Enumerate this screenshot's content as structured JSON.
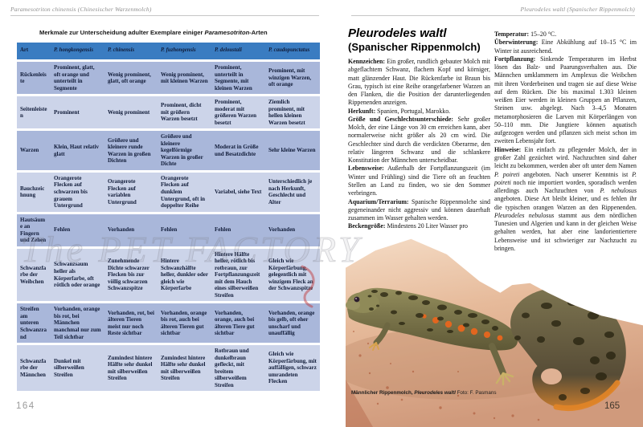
{
  "watermark": {
    "text": "The PET FACTORY",
    "accent_red": "#c03030",
    "gray": "#7d7d8a"
  },
  "colors": {
    "table_header_blue": "#3a7cc1",
    "table_row_dark": "#a9b7da",
    "table_row_light": "#ccd4e9",
    "table_text_navy": "#101b38",
    "rock_pink": "#e4b797",
    "newt_olive": "#6f6945",
    "newt_spot_orange": "#e2661f",
    "rule_gray": "#c6c6c6"
  },
  "left_page": {
    "running_head": "Paramesotriton chinensis (Chinesischer Warzenmolch)",
    "page_number": "164",
    "table": {
      "title_pre": "Merkmale zur Unterscheidung adulter Exemplare einiger ",
      "title_italic": "Paramesotriton",
      "title_post": "-Arten",
      "columns": [
        "Art",
        "P. hongkongensis",
        "P. chinensis",
        "P. fuzhongensis",
        "P. deloustali",
        "P. caudopunctatus"
      ],
      "rows": [
        {
          "label": "Rückenleiste",
          "cells": [
            "Prominent, glatt, oft orange und unterteilt in Segmente",
            "Wenig prominent, glatt, oft orange",
            "Wenig prominent, mit kleinen Warzen",
            "Prominent, unterteilt in Segmente, mit kleinen Warzen",
            "Prominent, mit winzigen Warzen, oft orange"
          ]
        },
        {
          "label": "Seitenleisten",
          "cells": [
            "Prominent",
            "Wenig prominent",
            "Prominent, dicht mit größern Warzen besetzt",
            "Prominent, moderat mit größeren Warzen besetzt",
            "Ziemlich prominent, mit hellen kleinen Warzen besetzt"
          ]
        },
        {
          "label": "Warzen",
          "cells": [
            "Klein, Haut relativ glatt",
            "Größere und kleinere runde Warzen in großen Dichten",
            "Größere und kleinere kegelförmige Warzen in großer Dichte",
            "Moderat in Größe und Besatzdichte",
            "Sehr kleine Warzen"
          ]
        },
        {
          "label": "Bauchzeichnung",
          "cells": [
            "Orangerote Flecken auf schwarzen bis grauem Untergrund",
            "Orangerote Flecken auf variablen Untergrund",
            "Orangerote Flecken auf dunklem Untergrund, oft in doppelter Reihe",
            "Variabel, siehe Text",
            "Unterschiedlich je nach Herkunft, Geschlecht und Alter"
          ]
        },
        {
          "label": "Hautsäume an Fingern und Zehen",
          "cells": [
            "Fehlen",
            "Vorhanden",
            "Fehlen",
            "Fehlen",
            "Vorhanden"
          ]
        },
        {
          "label": "Schwanzfarbe der Weibchen",
          "cells": [
            "Schwanzsaum heller als Körperfarbe, oft rötlich oder orange",
            "Zunehmende Dichte schwarzer Flecken bis zur völlig schwarzen Schwanzspitze",
            "Hintere Schwanzhälfte heller, dunkler oder gleich wie Körperfarbe",
            "Hintere Hälfte heller, rötlich bis rotbraun, zur Fortpflanzungszeit mit dem Hauch eines silberweißen Streifen",
            "Gleich wie Körperfärbung, gelegentlich mit winzigem Fleck an der Schwanzspitze"
          ]
        },
        {
          "label": "Streifen am unteren Schwanzrand",
          "cells": [
            "Vorhanden, orange bis rot, bei Männchen manchmal nur zum Teil sichtbar",
            "Vorhanden, rot, bei älteren Tieren meist nur noch Reste sichtbar",
            "Vorhanden, orange bis rot, auch bei älteren Tieren gut sichtbar",
            "Vorhanden, orange, auch bei älteren Tiere gut sichtbar",
            "Vorhanden, orange bis gelb, oft eher unscharf und unauffällig"
          ]
        },
        {
          "label": "Schwanzfarbe der Männchen",
          "cells": [
            "Dunkel mit silberweißen Streifen",
            "Zumindest hintere Hälfte sehr dunkel mit silberweißen Streifen",
            "Zumindest hintere Hälfte sehr dunkel mit silberweißen Streifen",
            "Rotbraun und dunkelbraun gefleckt, mit breitem silberweißem Streifen",
            "Gleich wie Körperfärbung, mit auffälligen, schwarz umrandeten Flecken"
          ]
        }
      ]
    }
  },
  "right_page": {
    "running_head": "Pleurodeles waltl (Spanischer Rippenmolch)",
    "page_number": "165",
    "title_line1": "Pleurodeles waltl",
    "title_line2": "(Spanischer Rippenmolch)",
    "col1": [
      {
        "label": "Kennzeichen:",
        "text": " Ein großer, rundlich gebauter Molch mit abgeflachtem Schwanz, flachem Kopf und körniger, matt glänzender Haut. Die Rückenfarbe ist Braun bis Grau, typisch ist eine Reihe orangefarbener Warzen an den Flanken, die die Position der darunterliegenden Rippenenden anzeigen."
      },
      {
        "label": "Herkunft:",
        "text": " Spanien, Portugal, Marokko."
      },
      {
        "label": "Größe und Geschlechtsunterschiede:",
        "text": " Sehr großer Molch, der eine Länge von 30 cm erreichen kann, aber normalerweise nicht größer als 20 cm wird. Die Geschlechter sind durch die verdickten Oberarme, den relativ längeren Schwanz und die schlankere Konstitution der Männchen unterscheidbar."
      },
      {
        "label": "Lebensweise:",
        "text": " Außerhalb der Fortpflanzungszeit (im Winter und Frühling) sind die Tiere oft an feuchten Stellen an Land zu finden, wo sie den Sommer verbringen."
      },
      {
        "label": "Aquarium/Terrarium:",
        "text": " Spanische Rippenmolche sind gegeneinander nicht aggressiv und können dauerhaft zusammen im Wasser gehalten werden."
      },
      {
        "label": "Beckengröße:",
        "text": " Mindestens 20 Liter Wasser pro"
      }
    ],
    "col2": [
      {
        "label": "Temperatur:",
        "text": " 15–20 °C."
      },
      {
        "label": "Überwinterung:",
        "text": " Eine Abkühlung auf 10–15 °C im Winter ist ausreichend."
      },
      {
        "label": "Fortpflanzung:",
        "text": " Sinkende Temperaturen im Herbst lösen das Balz- und Paarungsverhalten aus. Die Männchen umklammern im Amplexus die Weibchen mit ihren Vorderbeinen und tragen sie auf diese Weise auf dem Rücken. Die bis maximal 1.303 kleinen weißen Eier werden in kleinen Gruppen an Pflanzen, Steinen usw. abgelegt. Nach 3–4,5 Monaten metamorphosieren die Larven mit Körperlängen von 50–110 mm. Die Jungtiere können aquatisch aufgezogen werden und pflanzen sich meist schon im zweiten Lebensjahr fort."
      },
      {
        "label": "Hinweise:",
        "text": " Ein einfach zu pflegender Molch, der in großer Zahl gezüchtet wird. Nachzuchten sind daher leicht zu bekommen, werden aber oft unter dem Namen P. poireti angeboten. Nach unserer Kenntnis ist P. poireti noch nie importiert worden, sporadisch werden allerdings auch Nachzuchten von P. nebulosus angeboten. Diese Art bleibt kleiner, und es fehlen ihr die typischen orangen Warzen an den Rippenenden. Pleurodeles nebulosus stammt aus dem nördlichen Tunesien und Algerien und kann in der gleichen Weise gehalten werden, hat aber eine landorientiertere Lebensweise und ist schwieriger zur Nachzucht zu bringen."
      }
    ],
    "italic_terms": [
      "Pleurodeles nebulosus",
      "P. poireti",
      "P. nebulosus"
    ],
    "photo_caption_bold": "Männlicher Rippenmolch, ",
    "photo_caption_species": "Pleurodeles waltl",
    "photo_caption_credit": " Foto: F. Pasmans"
  }
}
